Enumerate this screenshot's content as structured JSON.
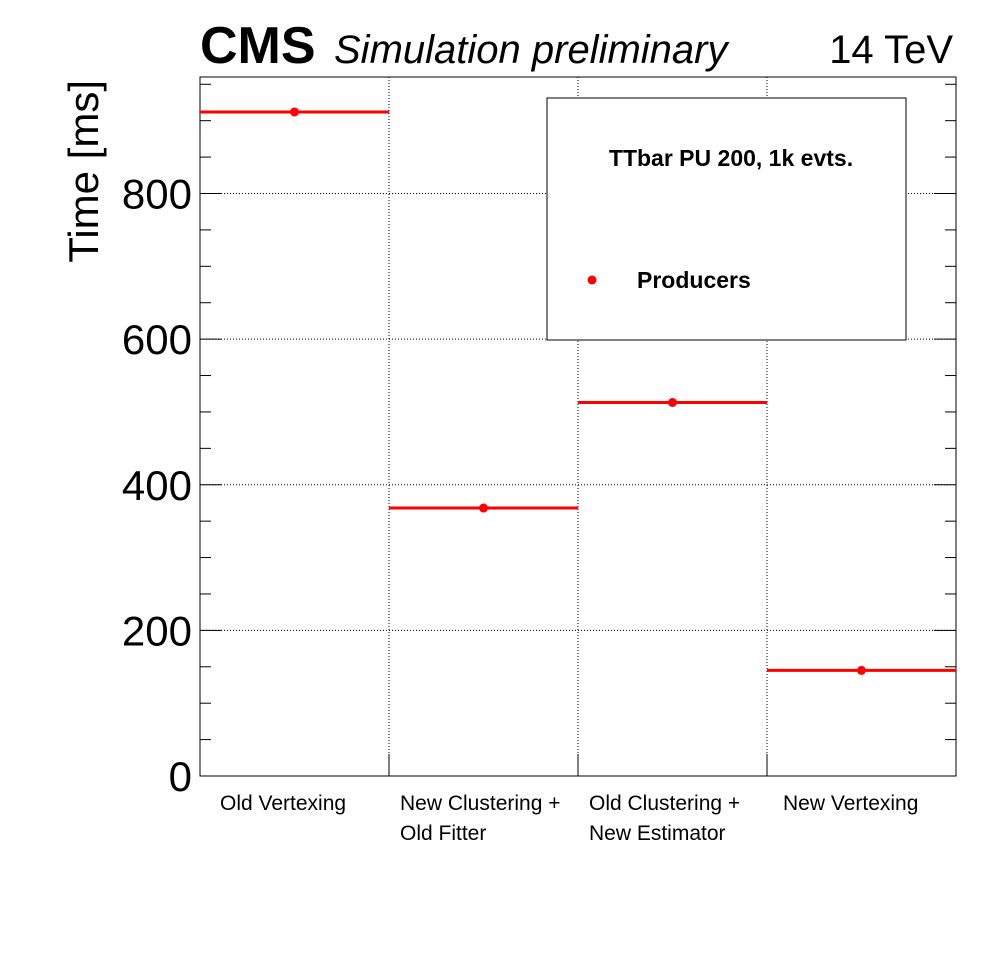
{
  "header": {
    "cms": "CMS",
    "subtitle": "Simulation preliminary",
    "energy": "14 TeV"
  },
  "chart_data": {
    "type": "scatter",
    "categories": [
      [
        "Old Vertexing"
      ],
      [
        "New Clustering +",
        "Old Fitter"
      ],
      [
        "Old Clustering +",
        "New Estimator"
      ],
      [
        "New Vertexing"
      ]
    ],
    "series": [
      {
        "name": "Producers",
        "values": [
          912,
          368,
          513,
          145
        ],
        "color": "#ff0000",
        "marker": "dot-with-horizontal-bar"
      }
    ],
    "ylabel": "Time [ms]",
    "ylim": [
      0,
      960
    ],
    "yticks": [
      0,
      200,
      400,
      600,
      800
    ],
    "grid": true,
    "legend": {
      "title": "TTbar PU 200, 1k evts.",
      "placement": "top-right"
    }
  }
}
